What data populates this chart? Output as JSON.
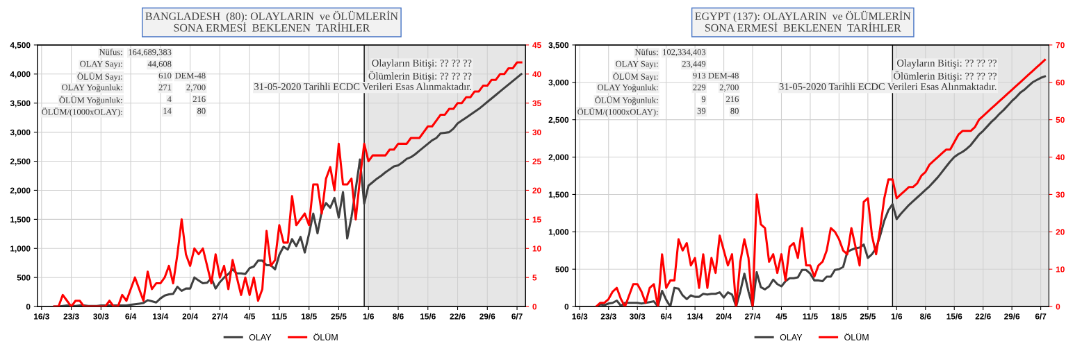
{
  "chart_data": [
    {
      "type": "line",
      "title": "BANGLADESH  (80): OLAYLARIN  ve ÖLÜMLERİN\nSONA ERMESİ  BEKLENEN  TARİHLER",
      "x": [
        "2020-03-19",
        "2020-03-20",
        "2020-03-21",
        "2020-03-22",
        "2020-03-23",
        "2020-03-24",
        "2020-03-25",
        "2020-03-26",
        "2020-03-27",
        "2020-03-28",
        "2020-03-29",
        "2020-03-30",
        "2020-03-31",
        "2020-04-01",
        "2020-04-02",
        "2020-04-03",
        "2020-04-04",
        "2020-04-05",
        "2020-04-06",
        "2020-04-07",
        "2020-04-08",
        "2020-04-09",
        "2020-04-10",
        "2020-04-11",
        "2020-04-12",
        "2020-04-13",
        "2020-04-14",
        "2020-04-15",
        "2020-04-16",
        "2020-04-17",
        "2020-04-18",
        "2020-04-19",
        "2020-04-20",
        "2020-04-21",
        "2020-04-22",
        "2020-04-23",
        "2020-04-24",
        "2020-04-25",
        "2020-04-26",
        "2020-04-27",
        "2020-04-28",
        "2020-04-29",
        "2020-04-30",
        "2020-05-01",
        "2020-05-02",
        "2020-05-03",
        "2020-05-04",
        "2020-05-05",
        "2020-05-06",
        "2020-05-07",
        "2020-05-08",
        "2020-05-09",
        "2020-05-10",
        "2020-05-11",
        "2020-05-12",
        "2020-05-13",
        "2020-05-14",
        "2020-05-15",
        "2020-05-16",
        "2020-05-17",
        "2020-05-18",
        "2020-05-19",
        "2020-05-20",
        "2020-05-21",
        "2020-05-22",
        "2020-05-23",
        "2020-05-24",
        "2020-05-25",
        "2020-05-26",
        "2020-05-27",
        "2020-05-28",
        "2020-05-29",
        "2020-05-30",
        "2020-05-31",
        "2020-06-01",
        "2020-06-02",
        "2020-06-03",
        "2020-06-04",
        "2020-06-05",
        "2020-06-06",
        "2020-06-07",
        "2020-06-08",
        "2020-06-09",
        "2020-06-10",
        "2020-06-11",
        "2020-06-12",
        "2020-06-13",
        "2020-06-14",
        "2020-06-15",
        "2020-06-16",
        "2020-06-17",
        "2020-06-18",
        "2020-06-19",
        "2020-06-20",
        "2020-06-21",
        "2020-06-22",
        "2020-06-23",
        "2020-06-24",
        "2020-06-25",
        "2020-06-26",
        "2020-06-27",
        "2020-06-28",
        "2020-06-29",
        "2020-06-30",
        "2020-07-01",
        "2020-07-02",
        "2020-07-03",
        "2020-07-04",
        "2020-07-05",
        "2020-07-06",
        "2020-07-07"
      ],
      "series": [
        {
          "name": "OLAY",
          "color": "#404040",
          "values": [
            0,
            0,
            10,
            20,
            10,
            10,
            20,
            20,
            10,
            10,
            10,
            20,
            20,
            20,
            20,
            20,
            20,
            20,
            30,
            40,
            50,
            60,
            110,
            90,
            70,
            140,
            190,
            210,
            220,
            340,
            270,
            310,
            310,
            500,
            450,
            400,
            410,
            490,
            310,
            420,
            500,
            560,
            640,
            570,
            570,
            560,
            660,
            690,
            790,
            790,
            710,
            710,
            640,
            890,
            1030,
            980,
            1160,
            1040,
            1200,
            930,
            1250,
            1600,
            1260,
            1640,
            1780,
            1700,
            1870,
            1530,
            1970,
            1170,
            1540,
            2020,
            2530,
            1770,
            2080,
            2140,
            2200,
            2250,
            2310,
            2360,
            2410,
            2430,
            2480,
            2540,
            2570,
            2620,
            2680,
            2740,
            2800,
            2860,
            2900,
            2980,
            2990,
            3000,
            3060,
            3150,
            3200,
            3250,
            3300,
            3350,
            3400,
            3460,
            3520,
            3580,
            3640,
            3700,
            3760,
            3820,
            3880,
            3940,
            4000
          ]
        },
        {
          "name": "ÖLÜM",
          "color": "#ff0000",
          "axis": "y2",
          "values": [
            0,
            0,
            2,
            1,
            0,
            1,
            1,
            0,
            0,
            0,
            0,
            0,
            0,
            1,
            0,
            0,
            2,
            1,
            3,
            5,
            3,
            1,
            6,
            3,
            4,
            4,
            5,
            7,
            4,
            9,
            15,
            9,
            7,
            10,
            9,
            10,
            7,
            4,
            9,
            5,
            7,
            3,
            8,
            5,
            2,
            5,
            2,
            5,
            1,
            3,
            13,
            7,
            8,
            14,
            11,
            11,
            19,
            14,
            15,
            16,
            14,
            21,
            21,
            16,
            22,
            24,
            20,
            28,
            21,
            21,
            22,
            15,
            22,
            28,
            25,
            26,
            26,
            26,
            26,
            27,
            27,
            28,
            28,
            28,
            29,
            29,
            29,
            30,
            31,
            31,
            32,
            33,
            33,
            34,
            34,
            35,
            35,
            36,
            36,
            37,
            37,
            38,
            38,
            39,
            39,
            40,
            40,
            41,
            41,
            42,
            42
          ]
        }
      ],
      "xlim": [
        "2020-03-15",
        "2020-07-08"
      ],
      "xticks": [
        {
          "value": "2020-03-16",
          "label": "16/3"
        },
        {
          "value": "2020-03-23",
          "label": "23/3"
        },
        {
          "value": "2020-03-30",
          "label": "30/3"
        },
        {
          "value": "2020-04-06",
          "label": "6/4"
        },
        {
          "value": "2020-04-13",
          "label": "13/4"
        },
        {
          "value": "2020-04-20",
          "label": "20/4"
        },
        {
          "value": "2020-04-27",
          "label": "27/4"
        },
        {
          "value": "2020-05-04",
          "label": "4/5"
        },
        {
          "value": "2020-05-11",
          "label": "11/5"
        },
        {
          "value": "2020-05-18",
          "label": "18/5"
        },
        {
          "value": "2020-05-25",
          "label": "25/5"
        },
        {
          "value": "2020-06-01",
          "label": "1/6"
        },
        {
          "value": "2020-06-08",
          "label": "8/6"
        },
        {
          "value": "2020-06-15",
          "label": "15/6"
        },
        {
          "value": "2020-06-22",
          "label": "22/6"
        },
        {
          "value": "2020-06-29",
          "label": "29/6"
        },
        {
          "value": "2020-07-06",
          "label": "6/7"
        }
      ],
      "ylim": [
        0,
        4500
      ],
      "yticks": [
        {
          "value": 0,
          "label": "0"
        },
        {
          "value": 500,
          "label": "500"
        },
        {
          "value": 1000,
          "label": "1,000"
        },
        {
          "value": 1500,
          "label": "1,500"
        },
        {
          "value": 2000,
          "label": "2,000"
        },
        {
          "value": 2500,
          "label": "2,500"
        },
        {
          "value": 3000,
          "label": "3,000"
        },
        {
          "value": 3500,
          "label": "3,500"
        },
        {
          "value": 4000,
          "label": "4,000"
        },
        {
          "value": 4500,
          "label": "4,500"
        }
      ],
      "y2lim": [
        0,
        45
      ],
      "y2ticks": [
        0,
        5,
        10,
        15,
        20,
        25,
        30,
        35,
        40,
        45
      ],
      "ref_lines": [
        {
          "axis": "x",
          "value": "2020-05-31",
          "color": "#000000"
        }
      ],
      "bands": [
        {
          "axis": "x",
          "from": "2020-05-31",
          "to": "2020-07-08",
          "color": "#e6e6e6"
        }
      ],
      "grid": true,
      "legend": "bottom",
      "annotations": [
        "Nüfus:",
        "164,689,383",
        "OLAY Sayı:",
        "44,608",
        "ÖLÜM Sayı:",
        "610",
        "DEM-48",
        "OLAY Yoğunluk:",
        "271",
        "2,700",
        "ÖLÜM Yoğunluk:",
        "4",
        "216",
        "ÖLÜM/(1000xOLAY):",
        "14",
        "80",
        "Olayların Bitişi: ?? ?? ??",
        "Ölümlerin Bitişi: ?? ?? ??",
        "31-05-2020 Tarihli ECDC Verileri Esas Alınmaktadır."
      ]
    },
    {
      "type": "line",
      "title": "EGYPT (137): OLAYLARIN  ve ÖLÜMLERİN\nSONA ERMESİ  BEKLENEN  TARİHLER",
      "x": [
        "2020-03-20",
        "2020-03-21",
        "2020-03-22",
        "2020-03-23",
        "2020-03-24",
        "2020-03-25",
        "2020-03-26",
        "2020-03-27",
        "2020-03-28",
        "2020-03-29",
        "2020-03-30",
        "2020-03-31",
        "2020-04-01",
        "2020-04-02",
        "2020-04-03",
        "2020-04-04",
        "2020-04-05",
        "2020-04-06",
        "2020-04-07",
        "2020-04-08",
        "2020-04-09",
        "2020-04-10",
        "2020-04-11",
        "2020-04-12",
        "2020-04-13",
        "2020-04-14",
        "2020-04-15",
        "2020-04-16",
        "2020-04-17",
        "2020-04-18",
        "2020-04-19",
        "2020-04-20",
        "2020-04-21",
        "2020-04-22",
        "2020-04-23",
        "2020-04-24",
        "2020-04-25",
        "2020-04-26",
        "2020-04-27",
        "2020-04-28",
        "2020-04-29",
        "2020-04-30",
        "2020-05-01",
        "2020-05-02",
        "2020-05-03",
        "2020-05-04",
        "2020-05-05",
        "2020-05-06",
        "2020-05-07",
        "2020-05-08",
        "2020-05-09",
        "2020-05-10",
        "2020-05-11",
        "2020-05-12",
        "2020-05-13",
        "2020-05-14",
        "2020-05-15",
        "2020-05-16",
        "2020-05-17",
        "2020-05-18",
        "2020-05-19",
        "2020-05-20",
        "2020-05-21",
        "2020-05-22",
        "2020-05-23",
        "2020-05-24",
        "2020-05-25",
        "2020-05-26",
        "2020-05-27",
        "2020-05-28",
        "2020-05-29",
        "2020-05-30",
        "2020-05-31",
        "2020-06-01",
        "2020-06-02",
        "2020-06-03",
        "2020-06-04",
        "2020-06-05",
        "2020-06-06",
        "2020-06-07",
        "2020-06-08",
        "2020-06-09",
        "2020-06-10",
        "2020-06-11",
        "2020-06-12",
        "2020-06-13",
        "2020-06-14",
        "2020-06-15",
        "2020-06-16",
        "2020-06-17",
        "2020-06-18",
        "2020-06-19",
        "2020-06-20",
        "2020-06-21",
        "2020-06-22",
        "2020-06-23",
        "2020-06-24",
        "2020-06-25",
        "2020-06-26",
        "2020-06-27",
        "2020-06-28",
        "2020-06-29",
        "2020-06-30",
        "2020-07-01",
        "2020-07-02",
        "2020-07-03",
        "2020-07-04",
        "2020-07-05",
        "2020-07-06",
        "2020-07-07"
      ],
      "series": [
        {
          "name": "OLAY",
          "color": "#404040",
          "values": [
            0,
            30,
            20,
            40,
            50,
            80,
            10,
            50,
            50,
            50,
            50,
            40,
            50,
            60,
            70,
            0,
            210,
            90,
            0,
            250,
            240,
            150,
            100,
            150,
            130,
            130,
            170,
            160,
            170,
            170,
            190,
            120,
            190,
            160,
            0,
            200,
            440,
            200,
            0,
            460,
            260,
            230,
            270,
            360,
            300,
            270,
            340,
            380,
            380,
            390,
            490,
            490,
            440,
            350,
            350,
            340,
            400,
            400,
            490,
            500,
            530,
            730,
            760,
            780,
            790,
            830,
            650,
            700,
            780,
            950,
            1150,
            1290,
            1370,
            1170,
            1240,
            1300,
            1360,
            1410,
            1460,
            1510,
            1560,
            1610,
            1670,
            1730,
            1800,
            1870,
            1940,
            2000,
            2040,
            2070,
            2110,
            2160,
            2230,
            2300,
            2350,
            2410,
            2470,
            2520,
            2580,
            2630,
            2690,
            2750,
            2800,
            2860,
            2900,
            2950,
            3000,
            3030,
            3060,
            3080
          ]
        },
        {
          "name": "ÖLÜM",
          "color": "#ff0000",
          "axis": "y2",
          "values": [
            0,
            1,
            1,
            2,
            4,
            5,
            2,
            0,
            3,
            6,
            6,
            4,
            1,
            5,
            6,
            0,
            14,
            5,
            7,
            7,
            18,
            15,
            17,
            11,
            13,
            5,
            14,
            5,
            13,
            9,
            19,
            15,
            11,
            14,
            0,
            12,
            18,
            13,
            0,
            30,
            22,
            21,
            12,
            14,
            9,
            14,
            7,
            16,
            17,
            13,
            21,
            11,
            11,
            8,
            11,
            12,
            15,
            21,
            20,
            18,
            15,
            14,
            21,
            16,
            11,
            28,
            29,
            19,
            14,
            21,
            29,
            34,
            34,
            29,
            30,
            31,
            32,
            32,
            33,
            35,
            36,
            38,
            39,
            40,
            41,
            42,
            42,
            44,
            46,
            47,
            47,
            47,
            48,
            50,
            51,
            52,
            53,
            54,
            55,
            56,
            57,
            58,
            59,
            60,
            61,
            62,
            63,
            64,
            65,
            66
          ]
        }
      ],
      "xlim": [
        "2020-03-15",
        "2020-07-08"
      ],
      "xticks": [
        {
          "value": "2020-03-16",
          "label": "16/3"
        },
        {
          "value": "2020-03-23",
          "label": "23/3"
        },
        {
          "value": "2020-03-30",
          "label": "30/3"
        },
        {
          "value": "2020-04-06",
          "label": "6/4"
        },
        {
          "value": "2020-04-13",
          "label": "13/4"
        },
        {
          "value": "2020-04-20",
          "label": "20/4"
        },
        {
          "value": "2020-04-27",
          "label": "27/4"
        },
        {
          "value": "2020-05-04",
          "label": "4/5"
        },
        {
          "value": "2020-05-11",
          "label": "11/5"
        },
        {
          "value": "2020-05-18",
          "label": "18/5"
        },
        {
          "value": "2020-05-25",
          "label": "25/5"
        },
        {
          "value": "2020-06-01",
          "label": "1/6"
        },
        {
          "value": "2020-06-08",
          "label": "8/6"
        },
        {
          "value": "2020-06-15",
          "label": "15/6"
        },
        {
          "value": "2020-06-22",
          "label": "22/6"
        },
        {
          "value": "2020-06-29",
          "label": "29/6"
        },
        {
          "value": "2020-07-06",
          "label": "6/7"
        }
      ],
      "ylim": [
        0,
        3500
      ],
      "yticks": [
        {
          "value": 0,
          "label": "0"
        },
        {
          "value": 500,
          "label": "500"
        },
        {
          "value": 1000,
          "label": "1,000"
        },
        {
          "value": 1500,
          "label": "1,500"
        },
        {
          "value": 2000,
          "label": "2,000"
        },
        {
          "value": 2500,
          "label": "2,500"
        },
        {
          "value": 3000,
          "label": "3,000"
        },
        {
          "value": 3500,
          "label": "3,500"
        }
      ],
      "y2lim": [
        0,
        70
      ],
      "y2ticks": [
        0,
        10,
        20,
        30,
        40,
        50,
        60,
        70
      ],
      "ref_lines": [
        {
          "axis": "x",
          "value": "2020-05-31",
          "color": "#000000"
        }
      ],
      "bands": [
        {
          "axis": "x",
          "from": "2020-05-31",
          "to": "2020-07-08",
          "color": "#e6e6e6"
        }
      ],
      "grid": true,
      "legend": "bottom",
      "annotations": [
        "Nüfus:",
        "102,334,403",
        "OLAY Sayı:",
        "23,449",
        "ÖLÜM Sayı:",
        "913",
        "DEM-48",
        "OLAY Yoğunluk:",
        "229",
        "2,700",
        "ÖLÜM Yoğunluk:",
        "9",
        "216",
        "ÖLÜM/(1000xOLAY):",
        "39",
        "80",
        "Olayların Bitişi: ?? ?? ??",
        "Ölümlerin Bitişi: ?? ?? ??",
        "31-05-2020 Tarihli ECDC Verileri Esas Alınmaktadır."
      ]
    }
  ]
}
